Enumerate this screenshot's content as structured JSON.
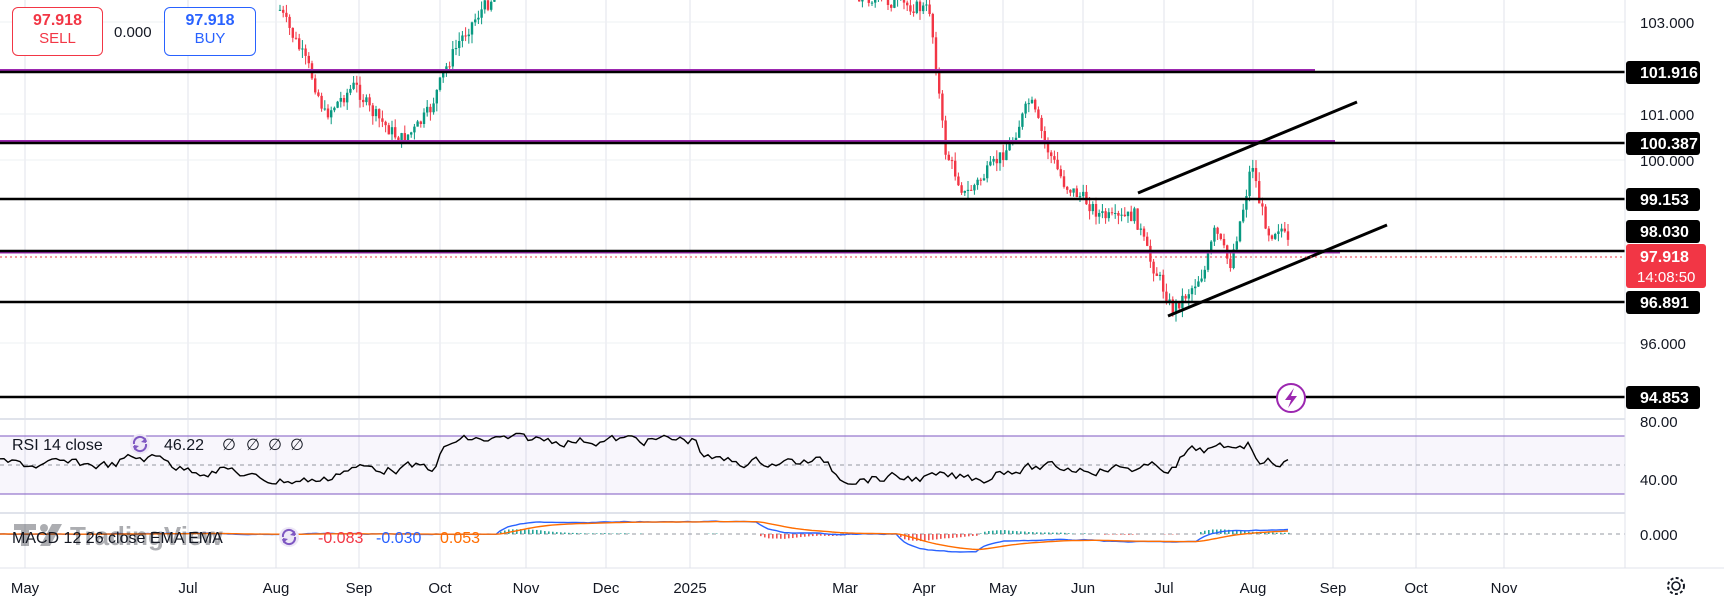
{
  "trade": {
    "sell_price": "97.918",
    "sell_label": "SELL",
    "spread": "0.000",
    "buy_price": "97.918",
    "buy_label": "BUY"
  },
  "price_axis": {
    "ticks": [
      "103.000",
      "101.000",
      "100.000",
      "96.000"
    ],
    "labels": [
      {
        "text": "101.916",
        "value": 101.916
      },
      {
        "text": "100.387",
        "value": 100.387
      },
      {
        "text": "99.153",
        "value": 99.153
      },
      {
        "text": "98.030",
        "value": 98.03
      },
      {
        "text": "96.891",
        "value": 96.891
      },
      {
        "text": "94.853",
        "value": 94.853
      }
    ],
    "current_price": "97.918",
    "countdown": "14:08:50"
  },
  "time_axis": [
    "May",
    "Jul",
    "Aug",
    "Sep",
    "Oct",
    "Nov",
    "Dec",
    "2025",
    "Mar",
    "Apr",
    "May",
    "Jun",
    "Jul",
    "Aug",
    "Sep",
    "Oct",
    "Nov"
  ],
  "rsi": {
    "title": "RSI 14 close",
    "value": "46.22",
    "extras": [
      "∅",
      "∅",
      "∅",
      "∅"
    ],
    "ticks": [
      "80.00",
      "40.00"
    ]
  },
  "macd": {
    "title": "MACD 12 26 close EMA EMA",
    "hist": "-0.083",
    "macd": "-0.030",
    "signal": "0.053",
    "ticks": [
      "0.000"
    ]
  },
  "watermark": "TradingView",
  "colors": {
    "up": "#089981",
    "down": "#f23645",
    "magenta": "#9c27b0",
    "level": "#000000",
    "rsi_band": "#7e57c2",
    "macd": "#2962ff",
    "signal": "#ff6d00",
    "current_badge": "#f23645"
  }
}
